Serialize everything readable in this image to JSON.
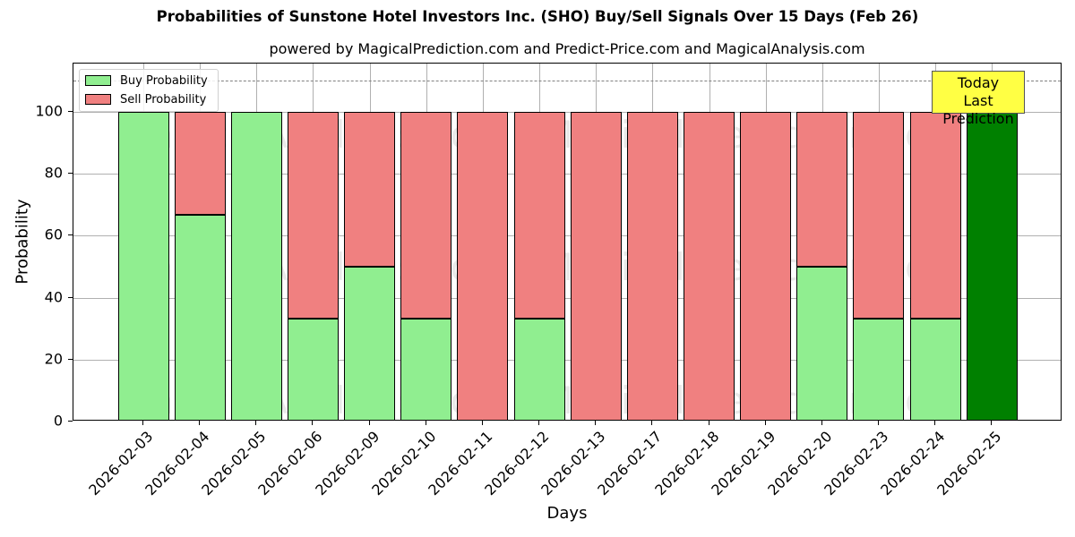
{
  "chart_data": {
    "type": "bar",
    "stacked": true,
    "title": "Probabilities of Sunstone Hotel Investors Inc. (SHO) Buy/Sell Signals Over 15 Days (Feb 26)",
    "subtitle": "powered by MagicalPrediction.com and Predict-Price.com and MagicalAnalysis.com",
    "xlabel": "Days",
    "ylabel": "Probability",
    "ylim": [
      0,
      115
    ],
    "yticks": [
      0,
      20,
      40,
      60,
      80,
      100
    ],
    "grid": true,
    "legend_position": "upper left",
    "categories": [
      "2026-02-03",
      "2026-02-04",
      "2026-02-05",
      "2026-02-06",
      "2026-02-09",
      "2026-02-10",
      "2026-02-11",
      "2026-02-12",
      "2026-02-13",
      "2026-02-17",
      "2026-02-18",
      "2026-02-19",
      "2026-02-20",
      "2026-02-23",
      "2026-02-24",
      "2026-02-25"
    ],
    "series": [
      {
        "name": "Buy Probability",
        "color": "#90ee90",
        "values": [
          100,
          66.67,
          100,
          33.33,
          50,
          33.33,
          0,
          33.33,
          0,
          0,
          0,
          0,
          50,
          33.33,
          33.33,
          100
        ]
      },
      {
        "name": "Sell Probability",
        "color": "#f08080",
        "values": [
          0,
          33.33,
          0,
          66.67,
          50,
          66.67,
          100,
          66.67,
          100,
          100,
          100,
          100,
          50,
          66.67,
          66.67,
          0
        ]
      }
    ],
    "highlight": {
      "index": 15,
      "color": "#008000"
    },
    "reference_line": {
      "y": 110,
      "style": "dashed",
      "color": "#808080"
    },
    "annotation": {
      "text_line1": "Today",
      "text_line2": "Last Prediction",
      "background": "#ffff44"
    },
    "watermarks": [
      "MagicalAnalysis.com",
      "MagicalPrediction.com"
    ]
  }
}
